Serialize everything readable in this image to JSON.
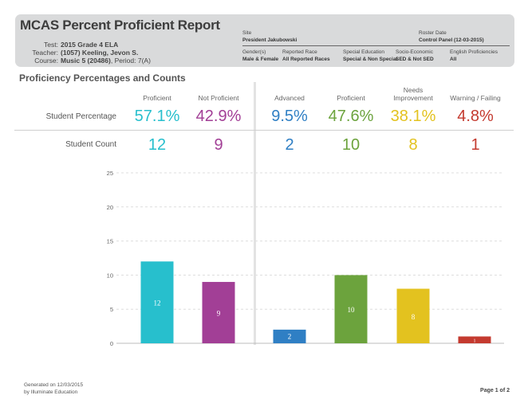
{
  "report": {
    "title": "MCAS Percent Proficient Report",
    "fields": [
      {
        "label": "Test:",
        "value": "2015 Grade 4 ELA",
        "extra": ""
      },
      {
        "label": "Teacher:",
        "value": "(1057) Keeling, Jevon S.",
        "extra": ""
      },
      {
        "label": "Course:",
        "value": "Music 5 (20486)",
        "extra": ", Period: 7(A)"
      }
    ],
    "site": {
      "label": "Site",
      "value": "President Jakubowski"
    },
    "roster_date": {
      "label": "Roster Date",
      "value": "Control Panel (12-03-2015)"
    },
    "filters": [
      {
        "label": "Gender(s)",
        "value": "Male & Female"
      },
      {
        "label": "Reported Race",
        "value": "All Reported Races"
      },
      {
        "label": "Special Education",
        "value": "Special & Non Special"
      },
      {
        "label": "Socio-Economic",
        "value": "SED & Not SED"
      },
      {
        "label": "English Proficiencies",
        "value": "All"
      }
    ]
  },
  "section_title": "Proficiency Percentages and Counts",
  "row_labels": {
    "percentage": "Student Percentage",
    "count": "Student Count"
  },
  "columns": [
    {
      "head": "Proficient",
      "percent": "57.1%",
      "count": "12",
      "color": "#27bfcd"
    },
    {
      "head": "Not Proficient",
      "percent": "42.9%",
      "count": "9",
      "color": "#a23f96"
    },
    {
      "head": "Advanced",
      "percent": "9.5%",
      "count": "2",
      "color": "#2f7fc4"
    },
    {
      "head": "Proficient",
      "percent": "47.6%",
      "count": "10",
      "color": "#6ca33d"
    },
    {
      "head": "Needs Improvement",
      "percent": "38.1%",
      "count": "8",
      "color": "#e3c21f"
    },
    {
      "head": "Warning / Failing",
      "percent": "4.8%",
      "count": "1",
      "color": "#c43a2f"
    }
  ],
  "chart_data": {
    "type": "bar",
    "categories": [
      "Proficient",
      "Not Proficient",
      "Advanced",
      "Proficient",
      "Needs Improvement",
      "Warning / Failing"
    ],
    "values": [
      12,
      9,
      2,
      10,
      8,
      1
    ],
    "colors": [
      "#27bfcd",
      "#a23f96",
      "#2f7fc4",
      "#6ca33d",
      "#e3c21f",
      "#c43a2f"
    ],
    "yticks": [
      "0",
      "5",
      "10",
      "15",
      "20",
      "25"
    ],
    "ylim": [
      0,
      25
    ],
    "data_labels": [
      "12",
      "9",
      "2",
      "10",
      "8",
      "1"
    ],
    "grid": true,
    "title": "",
    "xlabel": "",
    "ylabel": ""
  },
  "footer": {
    "generated": "Generated on 12/03/2015",
    "by": "by Illuminate Education",
    "page": "Page 1 of 2"
  }
}
